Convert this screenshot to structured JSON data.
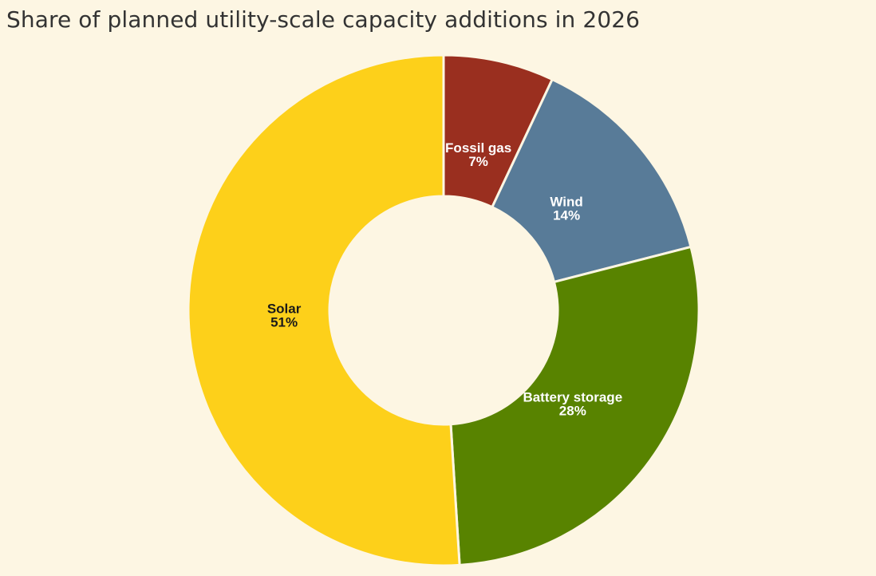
{
  "chart_data": {
    "type": "pie",
    "donut": true,
    "title": "Share of planned utility-scale capacity additions in 2026",
    "slices": [
      {
        "label": "Fossil gas",
        "value": 7,
        "pct_label": "7%",
        "color": "#9a2f1f",
        "label_color": "#ffffff"
      },
      {
        "label": "Wind",
        "value": 14,
        "pct_label": "14%",
        "color": "#587b98",
        "label_color": "#ffffff"
      },
      {
        "label": "Battery storage",
        "value": 28,
        "pct_label": "28%",
        "color": "#588300",
        "label_color": "#ffffff"
      },
      {
        "label": "Solar",
        "value": 51,
        "pct_label": "51%",
        "color": "#fdd01a",
        "label_color": "#1a1a1a"
      }
    ],
    "background_color": "#fdf6e3",
    "legend": "none"
  }
}
